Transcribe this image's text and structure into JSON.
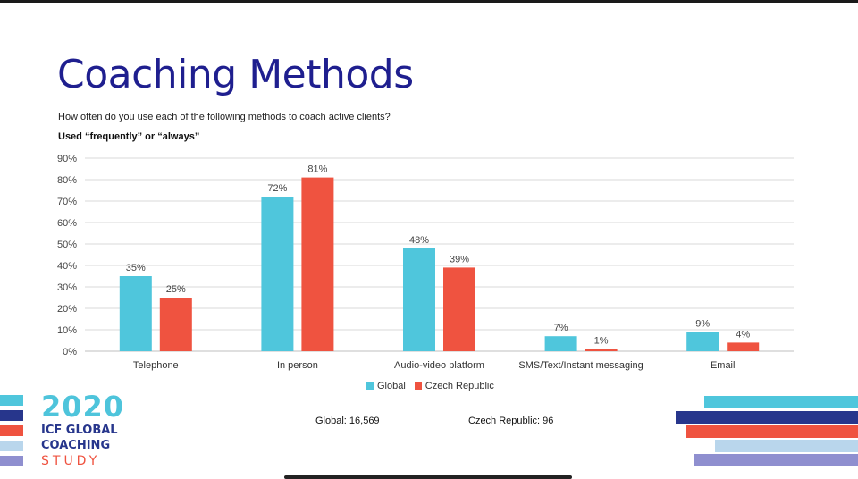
{
  "title": "Coaching Methods",
  "question": "How often do you use each of the following methods to coach active clients?",
  "subtitle": "Used “frequently” or “always”",
  "colors": {
    "global": "#4fc6dc",
    "czech": "#ef5340",
    "title": "#1f1f8f",
    "navy": "#27368c",
    "lightblue": "#b9d6ec",
    "lavender": "#8f8fcf"
  },
  "chart_data": {
    "type": "bar",
    "categories": [
      "Telephone",
      "In person",
      "Audio-video platform",
      "SMS/Text/Instant messaging",
      "Email"
    ],
    "series": [
      {
        "name": "Global",
        "values": [
          35,
          72,
          48,
          7,
          9
        ],
        "labels": [
          "35%",
          "72%",
          "48%",
          "7%",
          "9%"
        ]
      },
      {
        "name": "Czech Republic",
        "values": [
          25,
          81,
          39,
          1,
          4
        ],
        "labels": [
          "25%",
          "81%",
          "39%",
          "1%",
          "4%"
        ]
      }
    ],
    "yticks": [
      "0%",
      "10%",
      "20%",
      "30%",
      "40%",
      "50%",
      "60%",
      "70%",
      "80%",
      "90%"
    ],
    "ylim": [
      0,
      90
    ],
    "grid": true,
    "legend": "bottom"
  },
  "counts": {
    "global": "Global: 16,569",
    "czech": "Czech Republic: 96"
  },
  "logo": {
    "year": "2020",
    "line1": "ICF GLOBAL",
    "line2": "COACHING",
    "line3": "STUDY"
  }
}
